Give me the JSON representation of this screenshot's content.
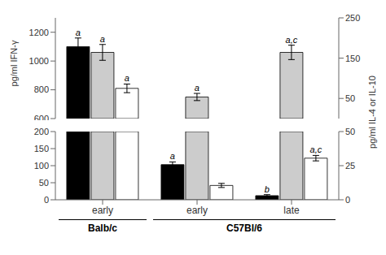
{
  "chart_data": [
    {
      "type": "bar",
      "ylabel": "pg/ml IFN-γ",
      "categories": [
        "early",
        "early",
        "late"
      ],
      "series": [
        {
          "color": "#000000",
          "values": [
            1100,
            null,
            null
          ],
          "errors": [
            60,
            null,
            null
          ],
          "annotations": [
            "a",
            null,
            null
          ]
        },
        {
          "color": "#cccccc",
          "values": [
            1060,
            750,
            1060
          ],
          "errors": [
            55,
            25,
            50
          ],
          "annotations": [
            "a",
            "a",
            "a,c"
          ]
        },
        {
          "color": "#ffffff",
          "values": [
            810,
            null,
            null
          ],
          "errors": [
            30,
            null,
            null
          ],
          "annotations": [
            "a",
            null,
            null
          ]
        }
      ],
      "ylim": [
        600,
        1300
      ],
      "yticks": [
        600,
        800,
        1000,
        1200
      ],
      "y2lim": [
        0,
        250
      ],
      "y2ticks": [
        50,
        150,
        250
      ],
      "grid": false,
      "tick_labels": "y"
    },
    {
      "type": "bar",
      "y2label": "pg/ml IL-4 or IL-10",
      "categories": [
        "early",
        "early",
        "late"
      ],
      "series": [
        {
          "color": "#000000",
          "values": [
            200,
            103,
            12
          ],
          "errors": [
            0,
            8,
            3
          ],
          "annotations": [
            null,
            "a",
            "b"
          ]
        },
        {
          "color": "#cccccc",
          "values": [
            200,
            200,
            200
          ],
          "errors": [
            0,
            0,
            0
          ],
          "annotations": [
            null,
            null,
            null
          ]
        },
        {
          "color": "#ffffff",
          "values": [
            200,
            42,
            122
          ],
          "errors": [
            0,
            6,
            8
          ],
          "annotations": [
            null,
            null,
            "a,c"
          ]
        }
      ],
      "ylim": [
        0,
        200
      ],
      "yticks": [
        0,
        50,
        100,
        150,
        200
      ],
      "y2lim": [
        0,
        50
      ],
      "y2ticks": [
        0,
        25,
        50
      ],
      "grid": false,
      "x_groups": [
        {
          "label": "Balb/c",
          "span": 1
        },
        {
          "label": "C57Bl/6",
          "span": 2
        }
      ]
    }
  ]
}
